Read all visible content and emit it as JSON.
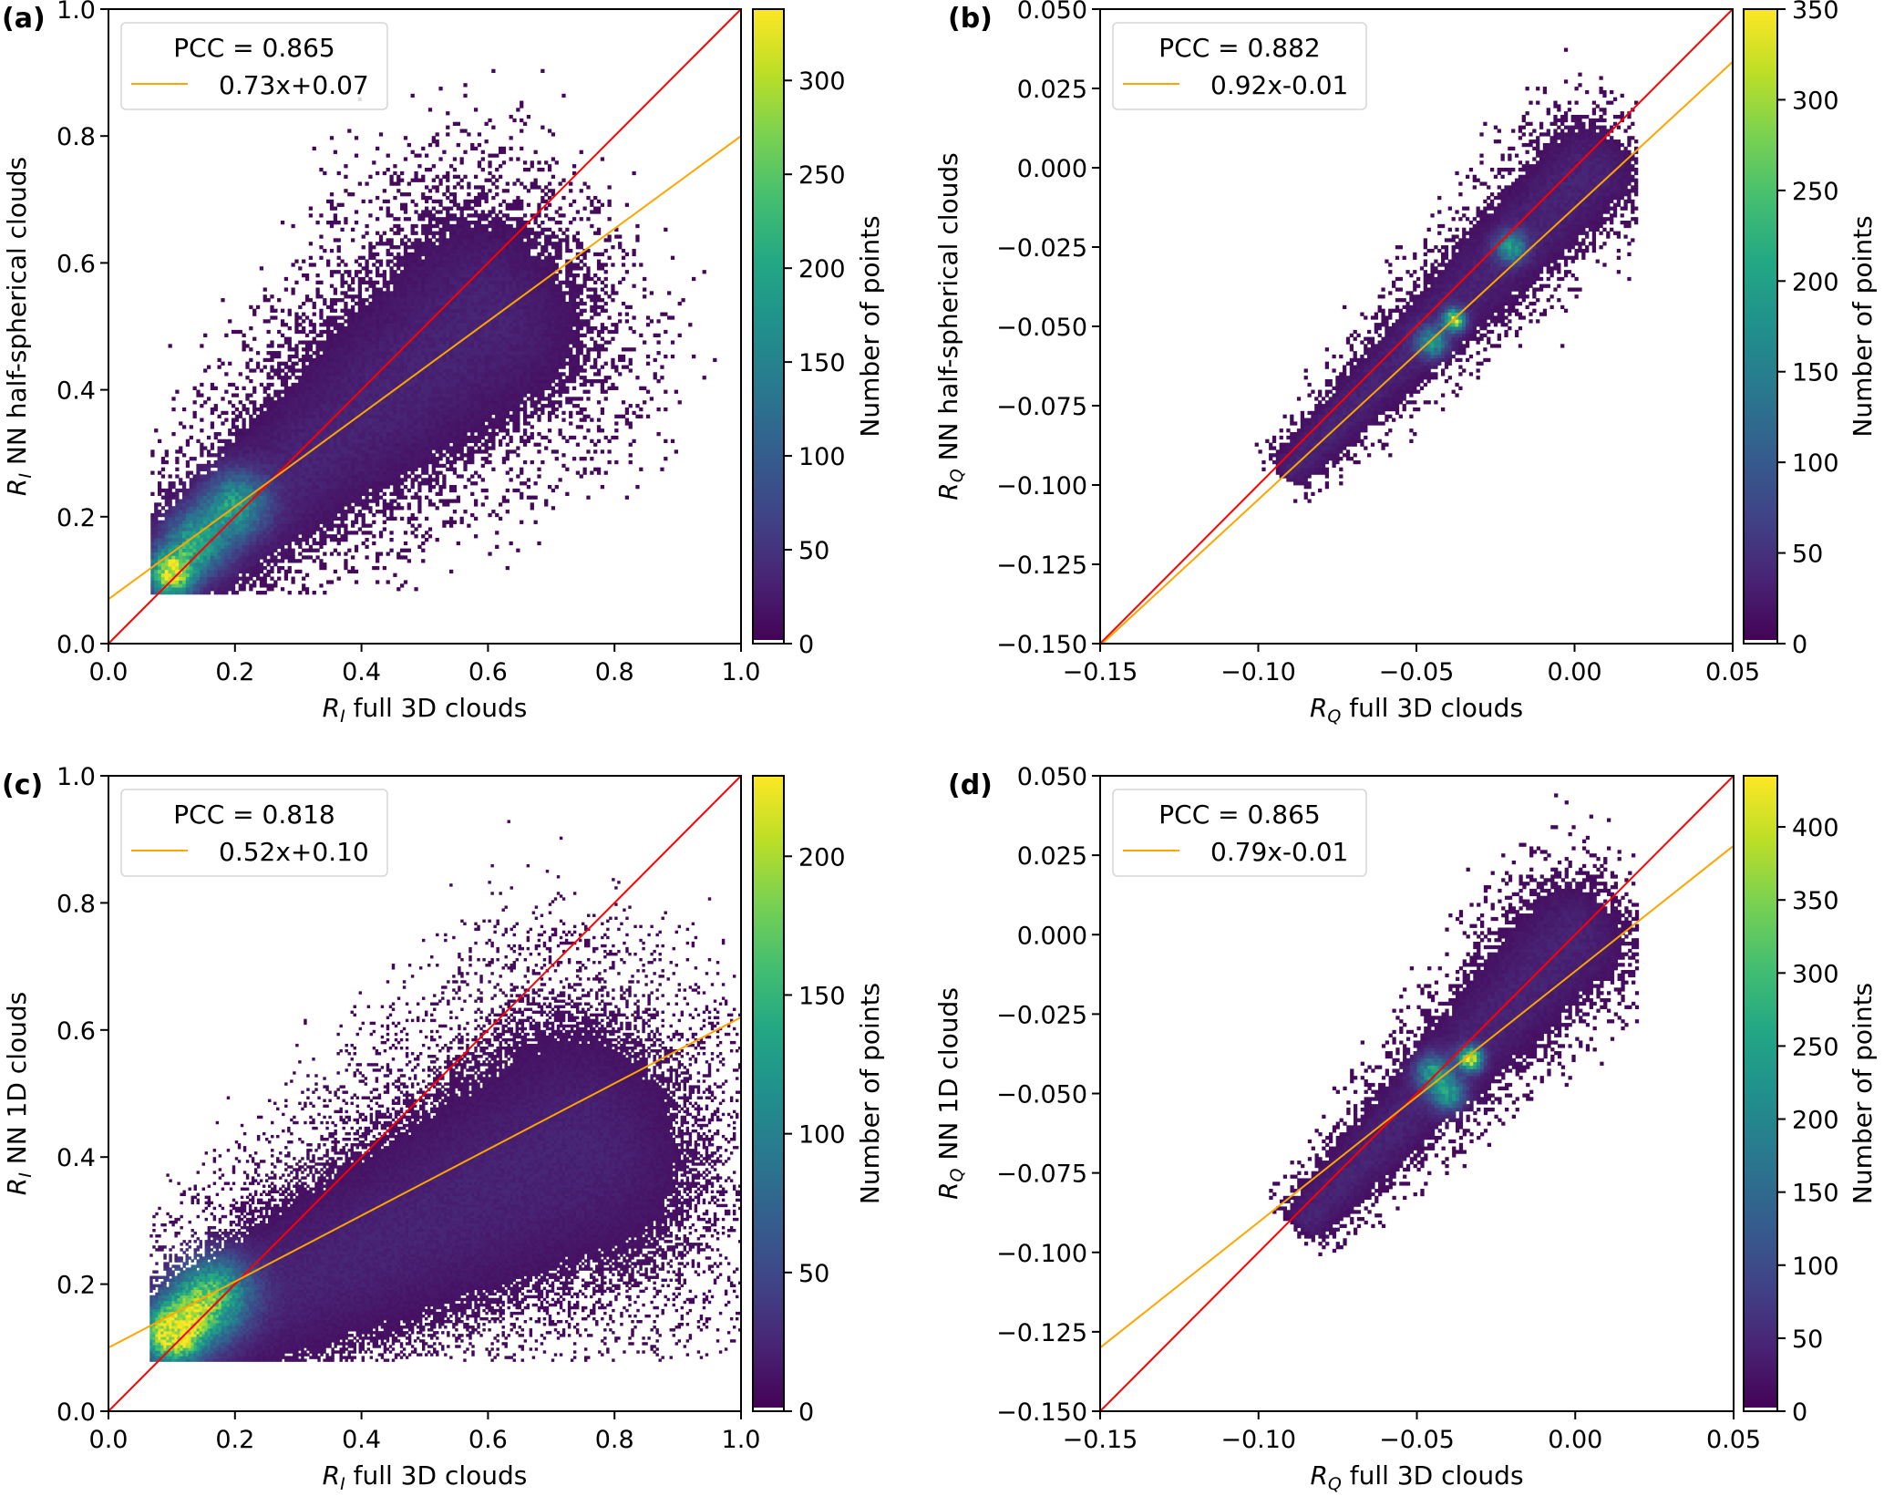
{
  "chart_data": [
    {
      "type": "heatmap",
      "panel_label": "(a)",
      "xlabel_var": "R",
      "xlabel_sub": "I",
      "xlabel_rest": " full 3D clouds",
      "ylabel_var": "R",
      "ylabel_sub": "I",
      "ylabel_rest": " NN half-spherical clouds",
      "xlim": [
        0.0,
        1.0
      ],
      "ylim": [
        0.0,
        1.0
      ],
      "xticks": [
        "0.0",
        "0.2",
        "0.4",
        "0.6",
        "0.8",
        "1.0"
      ],
      "xtick_values": [
        0.0,
        0.2,
        0.4,
        0.6,
        0.8,
        1.0
      ],
      "yticks": [
        "0.0",
        "0.2",
        "0.4",
        "0.6",
        "0.8",
        "1.0"
      ],
      "ytick_values": [
        0.0,
        0.2,
        0.4,
        0.6,
        0.8,
        1.0
      ],
      "legend": {
        "pcc": "PCC = 0.865",
        "fit_label": "0.73x+0.07",
        "placement": "top-left"
      },
      "fit": {
        "slope": 0.73,
        "intercept": 0.07,
        "color": "#ffa500"
      },
      "identity_line": {
        "color": "#ff0000"
      },
      "colorbar": {
        "label": "Number of points",
        "vmin": 0,
        "vmax": 338,
        "ticks": [
          0,
          50,
          100,
          150,
          200,
          250,
          300
        ]
      },
      "density": {
        "x_range": [
          0.065,
          1.0
        ],
        "y_min": 0.08,
        "core": [
          [
            0.1,
            0.11
          ],
          [
            0.14,
            0.16
          ],
          [
            0.2,
            0.22
          ]
        ],
        "cloud_axis": {
          "from": [
            0.08,
            0.1
          ],
          "to": [
            0.6,
            0.52
          ]
        },
        "spread": 0.085,
        "bins": 180
      }
    },
    {
      "type": "heatmap",
      "panel_label": "(b)",
      "xlabel_var": "R",
      "xlabel_sub": "Q",
      "xlabel_rest": " full 3D clouds",
      "ylabel_var": "R",
      "ylabel_sub": "Q",
      "ylabel_rest": " NN half-spherical clouds",
      "xlim": [
        -0.15,
        0.05
      ],
      "ylim": [
        -0.15,
        0.05
      ],
      "xticks": [
        "−0.15",
        "−0.10",
        "−0.05",
        "0.00",
        "0.05"
      ],
      "xtick_values": [
        -0.15,
        -0.1,
        -0.05,
        0.0,
        0.05
      ],
      "yticks": [
        "−0.150",
        "−0.125",
        "−0.100",
        "−0.075",
        "−0.050",
        "−0.025",
        "0.000",
        "0.025",
        "0.050"
      ],
      "ytick_values": [
        -0.15,
        -0.125,
        -0.1,
        -0.075,
        -0.05,
        -0.025,
        0.0,
        0.025,
        0.05
      ],
      "legend": {
        "pcc": "PCC = 0.882",
        "fit_label": "0.92x-0.01",
        "placement": "top-left"
      },
      "fit": {
        "slope": 0.92,
        "intercept": -0.0126,
        "color": "#ffa500"
      },
      "identity_line": {
        "color": "#ff0000"
      },
      "colorbar": {
        "label": "Number of points",
        "vmin": 0,
        "vmax": 350,
        "ticks": [
          0,
          50,
          100,
          150,
          200,
          250,
          300,
          350
        ]
      },
      "density": {
        "x_range": [
          -0.15,
          0.02
        ],
        "y_min": -0.15,
        "core": [
          [
            -0.038,
            -0.048
          ],
          [
            -0.045,
            -0.055
          ],
          [
            -0.02,
            -0.025
          ]
        ],
        "cloud_axis": {
          "from": [
            -0.09,
            -0.095
          ],
          "to": [
            0.005,
            0.0
          ]
        },
        "spread": 0.008,
        "bins": 180
      }
    },
    {
      "type": "heatmap",
      "panel_label": "(c)",
      "xlabel_var": "R",
      "xlabel_sub": "I",
      "xlabel_rest": " full 3D clouds",
      "ylabel_var": "R",
      "ylabel_sub": "I",
      "ylabel_rest": " NN 1D clouds",
      "xlim": [
        0.0,
        1.0
      ],
      "ylim": [
        0.0,
        1.0
      ],
      "xticks": [
        "0.0",
        "0.2",
        "0.4",
        "0.6",
        "0.8",
        "1.0"
      ],
      "xtick_values": [
        0.0,
        0.2,
        0.4,
        0.6,
        0.8,
        1.0
      ],
      "yticks": [
        "0.0",
        "0.2",
        "0.4",
        "0.6",
        "0.8",
        "1.0"
      ],
      "ytick_values": [
        0.0,
        0.2,
        0.4,
        0.6,
        0.8,
        1.0
      ],
      "legend": {
        "pcc": "PCC = 0.818",
        "fit_label": "0.52x+0.10",
        "placement": "top-left"
      },
      "fit": {
        "slope": 0.52,
        "intercept": 0.1,
        "color": "#ffa500"
      },
      "identity_line": {
        "color": "#ff0000"
      },
      "colorbar": {
        "label": "Number of points",
        "vmin": 0,
        "vmax": 229,
        "ticks": [
          0,
          50,
          100,
          150,
          200
        ]
      },
      "density": {
        "x_range": [
          0.065,
          1.0
        ],
        "y_min": 0.08,
        "core": [
          [
            0.1,
            0.12
          ],
          [
            0.13,
            0.15
          ],
          [
            0.17,
            0.19
          ]
        ],
        "cloud_axis": {
          "from": [
            0.08,
            0.1
          ],
          "to": [
            0.75,
            0.42
          ]
        },
        "spread": 0.1,
        "bins": 230
      }
    },
    {
      "type": "heatmap",
      "panel_label": "(d)",
      "xlabel_var": "R",
      "xlabel_sub": "Q",
      "xlabel_rest": " full 3D clouds",
      "ylabel_var": "R",
      "ylabel_sub": "Q",
      "ylabel_rest": " NN 1D clouds",
      "xlim": [
        -0.15,
        0.05
      ],
      "ylim": [
        -0.15,
        0.05
      ],
      "xticks": [
        "−0.15",
        "−0.10",
        "−0.05",
        "0.00",
        "0.05"
      ],
      "xtick_values": [
        -0.15,
        -0.1,
        -0.05,
        0.0,
        0.05
      ],
      "yticks": [
        "−0.150",
        "−0.125",
        "−0.100",
        "−0.075",
        "−0.050",
        "−0.025",
        "0.000",
        "0.025",
        "0.050"
      ],
      "ytick_values": [
        -0.15,
        -0.125,
        -0.1,
        -0.075,
        -0.05,
        -0.025,
        0.0,
        0.025,
        0.05
      ],
      "legend": {
        "pcc": "PCC = 0.865",
        "fit_label": "0.79x-0.01",
        "placement": "top-left"
      },
      "fit": {
        "slope": 0.79,
        "intercept": -0.0115,
        "color": "#ffa500"
      },
      "identity_line": {
        "color": "#ff0000"
      },
      "colorbar": {
        "label": "Number of points",
        "vmin": 0,
        "vmax": 435,
        "ticks": [
          0,
          50,
          100,
          150,
          200,
          250,
          300,
          350,
          400
        ]
      },
      "density": {
        "x_range": [
          -0.15,
          0.02
        ],
        "y_min": -0.15,
        "core": [
          [
            -0.033,
            -0.039
          ],
          [
            -0.045,
            -0.043
          ],
          [
            -0.04,
            -0.05
          ]
        ],
        "cloud_axis": {
          "from": [
            -0.085,
            -0.09
          ],
          "to": [
            0.0,
            0.0
          ]
        },
        "spread": 0.009,
        "bins": 180
      }
    }
  ]
}
